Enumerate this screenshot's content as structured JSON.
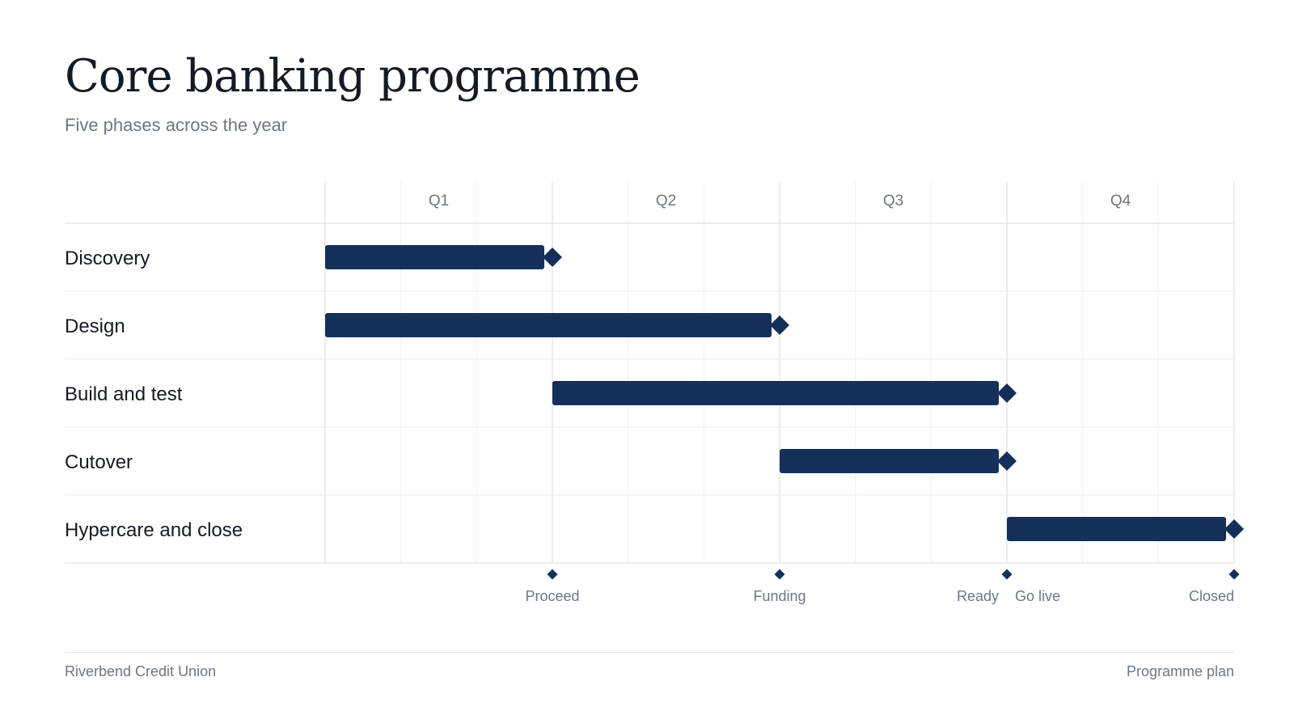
{
  "header": {
    "title": "Core banking programme",
    "subtitle": "Five phases across the year"
  },
  "footer": {
    "organisation": "Riverbend Credit Union",
    "document_label": "Programme plan"
  },
  "colors": {
    "bar": "#14305a",
    "milestone": "#14305a",
    "grid_major": "#e3e5e9",
    "grid_minor": "#f0f1f3",
    "axis_text": "#6f7683",
    "row_text": "#161a22"
  },
  "chart_data": {
    "type": "gantt",
    "time_unit": "month",
    "time_range": [
      0,
      12
    ],
    "quarters": [
      {
        "label": "Q1",
        "start": 0,
        "end": 3
      },
      {
        "label": "Q2",
        "start": 3,
        "end": 6
      },
      {
        "label": "Q3",
        "start": 6,
        "end": 9
      },
      {
        "label": "Q4",
        "start": 9,
        "end": 12
      }
    ],
    "tasks": [
      {
        "name": "Discovery",
        "start": 0,
        "end": 3,
        "end_milestone": true
      },
      {
        "name": "Design",
        "start": 0,
        "end": 6,
        "end_milestone": true
      },
      {
        "name": "Build and test",
        "start": 3,
        "end": 9,
        "end_milestone": true
      },
      {
        "name": "Cutover",
        "start": 6,
        "end": 9,
        "end_milestone": true
      },
      {
        "name": "Hypercare and close",
        "start": 9,
        "end": 12,
        "end_milestone": true
      }
    ],
    "milestones": [
      {
        "label": "Proceed",
        "at": 3,
        "align": "center"
      },
      {
        "label": "Funding",
        "at": 6,
        "align": "center"
      },
      {
        "label": "Ready",
        "at": 9,
        "align": "left"
      },
      {
        "label": "Go live",
        "at": 9,
        "align": "right"
      },
      {
        "label": "Closed",
        "at": 12,
        "align": "left"
      }
    ],
    "grid": true,
    "minor_grid": "monthly"
  }
}
